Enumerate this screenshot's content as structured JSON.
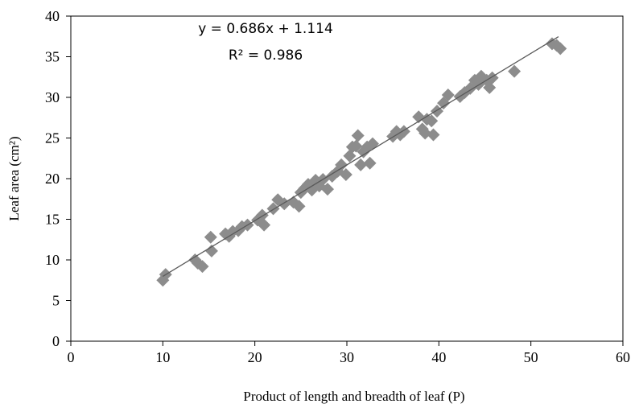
{
  "chart_data": {
    "type": "scatter",
    "title": "",
    "xlabel": "Product of length and breadth of leaf (P)",
    "ylabel": "Leaf area (cm²)",
    "xlim": [
      0,
      60
    ],
    "ylim": [
      0,
      40
    ],
    "xticks": [
      0,
      10,
      20,
      30,
      40,
      50,
      60
    ],
    "yticks": [
      0,
      5,
      10,
      15,
      20,
      25,
      30,
      35,
      40
    ],
    "grid": false,
    "legend": "none",
    "marker": "diamond",
    "marker_color": "#8c8c8c",
    "line_color": "#5a5a5a",
    "trendline": {
      "slope": 0.686,
      "intercept": 1.114,
      "x_range": [
        10,
        53
      ],
      "equation": "y = 0.686x + 1.114",
      "r2": "R² = 0.986"
    },
    "points": [
      {
        "x": 10.0,
        "y": 7.5
      },
      {
        "x": 10.3,
        "y": 8.2
      },
      {
        "x": 13.5,
        "y": 10.0
      },
      {
        "x": 13.8,
        "y": 9.6
      },
      {
        "x": 14.3,
        "y": 9.2
      },
      {
        "x": 15.2,
        "y": 12.8
      },
      {
        "x": 15.3,
        "y": 11.1
      },
      {
        "x": 16.8,
        "y": 13.2
      },
      {
        "x": 17.2,
        "y": 12.9
      },
      {
        "x": 17.6,
        "y": 13.5
      },
      {
        "x": 18.2,
        "y": 13.6
      },
      {
        "x": 18.6,
        "y": 14.1
      },
      {
        "x": 19.2,
        "y": 14.3
      },
      {
        "x": 20.3,
        "y": 14.9
      },
      {
        "x": 20.8,
        "y": 15.5
      },
      {
        "x": 21.0,
        "y": 14.3
      },
      {
        "x": 22.0,
        "y": 16.3
      },
      {
        "x": 22.5,
        "y": 17.4
      },
      {
        "x": 23.2,
        "y": 16.9
      },
      {
        "x": 24.2,
        "y": 17.1
      },
      {
        "x": 24.8,
        "y": 16.6
      },
      {
        "x": 25.0,
        "y": 18.3
      },
      {
        "x": 25.4,
        "y": 18.8
      },
      {
        "x": 25.8,
        "y": 19.3
      },
      {
        "x": 26.2,
        "y": 18.6
      },
      {
        "x": 26.6,
        "y": 19.8
      },
      {
        "x": 27.0,
        "y": 19.1
      },
      {
        "x": 27.4,
        "y": 19.9
      },
      {
        "x": 27.9,
        "y": 18.7
      },
      {
        "x": 28.4,
        "y": 20.3
      },
      {
        "x": 29.0,
        "y": 20.9
      },
      {
        "x": 29.4,
        "y": 21.7
      },
      {
        "x": 29.9,
        "y": 20.5
      },
      {
        "x": 30.3,
        "y": 22.8
      },
      {
        "x": 30.6,
        "y": 23.9
      },
      {
        "x": 31.0,
        "y": 24.0
      },
      {
        "x": 31.2,
        "y": 25.3
      },
      {
        "x": 31.5,
        "y": 21.7
      },
      {
        "x": 31.8,
        "y": 23.3
      },
      {
        "x": 32.2,
        "y": 23.9
      },
      {
        "x": 32.5,
        "y": 21.9
      },
      {
        "x": 32.8,
        "y": 24.3
      },
      {
        "x": 35.0,
        "y": 25.2
      },
      {
        "x": 35.4,
        "y": 25.8
      },
      {
        "x": 35.8,
        "y": 25.4
      },
      {
        "x": 36.2,
        "y": 25.8
      },
      {
        "x": 37.8,
        "y": 27.6
      },
      {
        "x": 38.2,
        "y": 26.1
      },
      {
        "x": 38.5,
        "y": 25.6
      },
      {
        "x": 38.7,
        "y": 27.3
      },
      {
        "x": 39.2,
        "y": 27.1
      },
      {
        "x": 39.4,
        "y": 25.4
      },
      {
        "x": 39.8,
        "y": 28.3
      },
      {
        "x": 40.5,
        "y": 29.3
      },
      {
        "x": 41.0,
        "y": 30.3
      },
      {
        "x": 42.3,
        "y": 30.1
      },
      {
        "x": 42.8,
        "y": 30.6
      },
      {
        "x": 43.4,
        "y": 31.1
      },
      {
        "x": 43.9,
        "y": 32.1
      },
      {
        "x": 44.3,
        "y": 31.6
      },
      {
        "x": 44.6,
        "y": 32.6
      },
      {
        "x": 45.2,
        "y": 32.1
      },
      {
        "x": 45.5,
        "y": 31.2
      },
      {
        "x": 45.8,
        "y": 32.4
      },
      {
        "x": 48.2,
        "y": 33.2
      },
      {
        "x": 52.3,
        "y": 36.6
      },
      {
        "x": 52.8,
        "y": 36.4
      },
      {
        "x": 53.2,
        "y": 36.0
      }
    ]
  }
}
